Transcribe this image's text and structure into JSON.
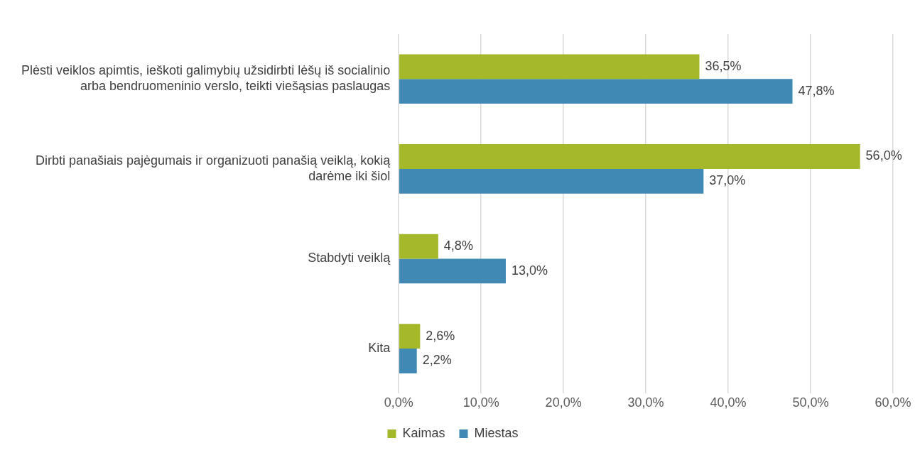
{
  "chart_data": {
    "type": "bar",
    "orientation": "horizontal",
    "categories": [
      "Plėsti veiklos apimtis, ieškoti galimybių užsidirbti lėšų iš socialinio arba bendruomeninio verslo, teikti viešąsias paslaugas",
      "Dirbti panašiais pajėgumais ir organizuoti panašią veiklą, kokią darėme iki šiol",
      "Stabdyti veiklą",
      "Kita"
    ],
    "series": [
      {
        "name": "Kaimas",
        "color": "#a5b82a",
        "values": [
          36.5,
          56.0,
          4.8,
          2.6
        ],
        "value_labels": [
          "36,5%",
          "56,0%",
          "4,8%",
          "2,6%"
        ]
      },
      {
        "name": "Miestas",
        "color": "#3f89b4",
        "values": [
          47.8,
          37.0,
          13.0,
          2.2
        ],
        "value_labels": [
          "47,8%",
          "37,0%",
          "13,0%",
          "2,2%"
        ]
      }
    ],
    "xlim": [
      0,
      60
    ],
    "xticks": [
      {
        "value": 0,
        "label": "0,0%"
      },
      {
        "value": 10,
        "label": "10,0%"
      },
      {
        "value": 20,
        "label": "20,0%"
      },
      {
        "value": 30,
        "label": "30,0%"
      },
      {
        "value": 40,
        "label": "40,0%"
      },
      {
        "value": 50,
        "label": "50,0%"
      },
      {
        "value": 60,
        "label": "60,0%"
      }
    ],
    "grid": "x",
    "legend": "bottom"
  }
}
